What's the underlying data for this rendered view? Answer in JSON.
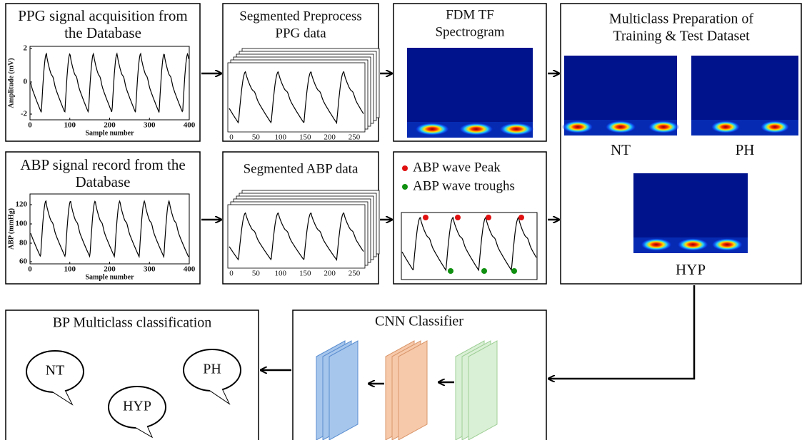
{
  "ppg_panel": {
    "title": [
      "PPG signal acquisition from",
      "the Database"
    ],
    "y_label": "Amplitude (mV)",
    "y_ticks": [
      "2",
      "0",
      "-2"
    ],
    "x_ticks": [
      "0",
      "100",
      "200",
      "300",
      "400"
    ],
    "x_label": "Sample number"
  },
  "segmented_ppg_panel": {
    "title": [
      "Segmented Preprocess",
      "PPG data"
    ],
    "x_ticks": [
      "0",
      "50",
      "100",
      "150",
      "200",
      "250"
    ]
  },
  "fdm_panel": {
    "title": [
      "FDM TF",
      "Spectrogram"
    ]
  },
  "multiclass_panel": {
    "title": [
      "Multiclass Preparation of",
      "Training & Test Dataset"
    ],
    "classes": [
      "NT",
      "PH",
      "HYP"
    ]
  },
  "abp_panel": {
    "title": [
      "ABP signal record from the",
      "Database"
    ],
    "y_label": "ABP (mmHg)",
    "y_ticks": [
      "120",
      "100",
      "80",
      "60"
    ],
    "x_ticks": [
      "0",
      "100",
      "200",
      "300",
      "400"
    ],
    "x_label": "Sample number"
  },
  "segmented_abp_panel": {
    "title": [
      "Segmented ABP data"
    ],
    "x_ticks": [
      "0",
      "50",
      "100",
      "150",
      "200",
      "250"
    ]
  },
  "peaks_panel": {
    "legend": [
      "ABP wave Peak",
      "ABP wave troughs"
    ]
  },
  "classification_panel": {
    "title": "BP Multiclass classification",
    "classes": [
      "NT",
      "HYP",
      "PH"
    ]
  },
  "cnn_panel": {
    "title": "CNN Classifier"
  }
}
